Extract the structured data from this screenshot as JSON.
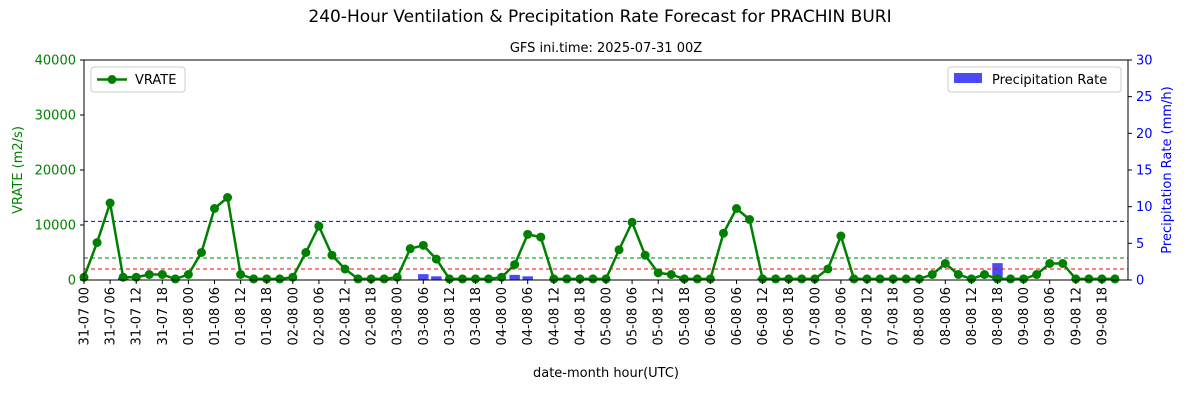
{
  "chart_data": {
    "type": "line",
    "title": "240-Hour Ventilation & Precipitation Rate Forecast for PRACHIN BURI",
    "subtitle": "GFS ini.time: 2025-07-31 00Z",
    "xlabel": "date-month hour(UTC)",
    "ylabel_left": "VRATE (m2/s)",
    "ylabel_right": "Precipitation Rate (mm/h)",
    "ylim_left": [
      0,
      40000
    ],
    "ylim_right": [
      0,
      30
    ],
    "yticks_left": [
      "0",
      "10000",
      "20000",
      "30000",
      "40000"
    ],
    "yticks_right": [
      "0",
      "5",
      "10",
      "15",
      "20",
      "25",
      "30"
    ],
    "x": [
      "31-07 00",
      "31-07 03",
      "31-07 06",
      "31-07 09",
      "31-07 12",
      "31-07 15",
      "31-07 18",
      "31-07 21",
      "01-08 00",
      "01-08 03",
      "01-08 06",
      "01-08 09",
      "01-08 12",
      "01-08 15",
      "01-08 18",
      "01-08 21",
      "02-08 00",
      "02-08 03",
      "02-08 06",
      "02-08 09",
      "02-08 12",
      "02-08 15",
      "02-08 18",
      "02-08 21",
      "03-08 00",
      "03-08 03",
      "03-08 06",
      "03-08 09",
      "03-08 12",
      "03-08 15",
      "03-08 18",
      "03-08 21",
      "04-08 00",
      "04-08 03",
      "04-08 06",
      "04-08 09",
      "04-08 12",
      "04-08 15",
      "04-08 18",
      "04-08 21",
      "05-08 00",
      "05-08 03",
      "05-08 06",
      "05-08 09",
      "05-08 12",
      "05-08 15",
      "05-08 18",
      "05-08 21",
      "06-08 00",
      "06-08 03",
      "06-08 06",
      "06-08 09",
      "06-08 12",
      "06-08 15",
      "06-08 18",
      "06-08 21",
      "07-08 00",
      "07-08 03",
      "07-08 06",
      "07-08 09",
      "07-08 12",
      "07-08 15",
      "07-08 18",
      "07-08 21",
      "08-08 00",
      "08-08 03",
      "08-08 06",
      "08-08 09",
      "08-08 12",
      "08-08 15",
      "08-08 18",
      "08-08 21",
      "09-08 00",
      "09-08 03",
      "09-08 06",
      "09-08 09",
      "09-08 12",
      "09-08 15",
      "09-08 18",
      "09-08 21"
    ],
    "xtick_labels": [
      "31-07 00",
      "31-07 06",
      "31-07 12",
      "31-07 18",
      "01-08 00",
      "01-08 06",
      "01-08 12",
      "01-08 18",
      "02-08 00",
      "02-08 06",
      "02-08 12",
      "02-08 18",
      "03-08 00",
      "03-08 06",
      "03-08 12",
      "03-08 18",
      "04-08 00",
      "04-08 06",
      "04-08 12",
      "04-08 18",
      "05-08 00",
      "05-08 06",
      "05-08 12",
      "05-08 18",
      "06-08 00",
      "06-08 06",
      "06-08 12",
      "06-08 18",
      "07-08 00",
      "07-08 06",
      "07-08 12",
      "07-08 18",
      "08-08 00",
      "08-08 06",
      "08-08 12",
      "08-08 18",
      "09-08 00",
      "09-08 06",
      "09-08 12",
      "09-08 18"
    ],
    "series": [
      {
        "name": "VRATE",
        "axis": "left",
        "kind": "line",
        "color": "#008000",
        "values": [
          500,
          6800,
          14000,
          500,
          500,
          1000,
          1000,
          200,
          1000,
          5000,
          13000,
          15000,
          1000,
          200,
          200,
          200,
          500,
          5000,
          9800,
          4500,
          2000,
          200,
          200,
          200,
          500,
          5700,
          6300,
          3800,
          200,
          200,
          200,
          200,
          500,
          2800,
          8300,
          7800,
          200,
          200,
          200,
          200,
          200,
          5500,
          10500,
          4500,
          1300,
          1000,
          200,
          200,
          200,
          8500,
          13000,
          11000,
          200,
          200,
          200,
          200,
          200,
          2000,
          8000,
          200,
          200,
          200,
          200,
          200,
          200,
          1000,
          3000,
          1000,
          200,
          1000,
          200,
          200,
          200,
          1000,
          3000,
          3000,
          200,
          200,
          200,
          200
        ]
      },
      {
        "name": "Precipitation Rate",
        "axis": "right",
        "kind": "bar",
        "color": "#4a4af7",
        "values": [
          0,
          0,
          0,
          0.3,
          0,
          0,
          0,
          0,
          0,
          0,
          0,
          0,
          0,
          0,
          0,
          0,
          0,
          0,
          0,
          0,
          0,
          0,
          0,
          0,
          0,
          0,
          0.8,
          0.5,
          0,
          0,
          0,
          0,
          0,
          0.7,
          0.5,
          0,
          0,
          0,
          0,
          0,
          0,
          0,
          0,
          0,
          0,
          0,
          0.3,
          0,
          0,
          0,
          0,
          0,
          0.3,
          0,
          0,
          0,
          0,
          0,
          0,
          0.3,
          0,
          0,
          0,
          0,
          0,
          0,
          0,
          0,
          0,
          0,
          2.3,
          0,
          0,
          0,
          0,
          0,
          0,
          0,
          0.2,
          0
        ]
      }
    ],
    "reference_lines": [
      {
        "axis": "right",
        "value": 8,
        "color": "#0000ff",
        "style": "dashed"
      },
      {
        "axis": "left",
        "value": 4000,
        "color": "#008000",
        "style": "dashed"
      },
      {
        "axis": "left",
        "value": 2000,
        "color": "#ff0000",
        "style": "dashed"
      }
    ],
    "legend": [
      {
        "label": "VRATE",
        "placement": "upper-left"
      },
      {
        "label": "Precipitation Rate",
        "placement": "upper-right"
      }
    ],
    "grid": false
  }
}
